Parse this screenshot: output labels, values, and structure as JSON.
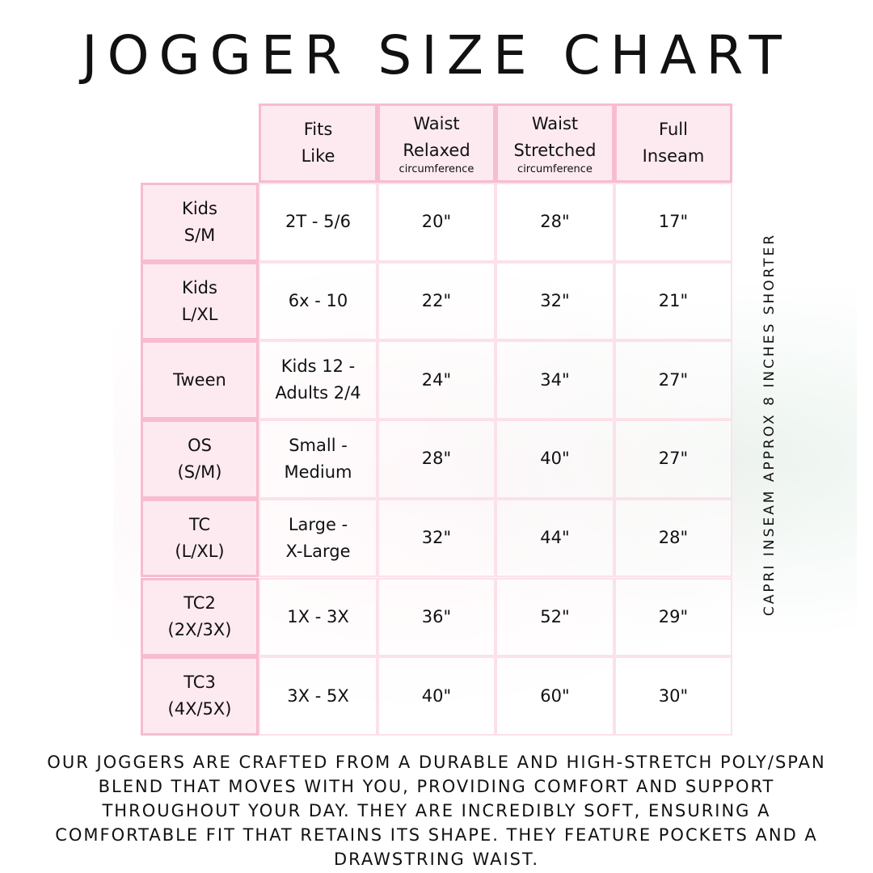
{
  "title": "JOGGER SIZE CHART",
  "side_note": "CAPRI INSEAM APPROX 8 INCHES SHORTER",
  "colors": {
    "header_fill": "#fdeaf0",
    "header_border": "#f7bcd0",
    "body_border": "#fbe1ea"
  },
  "columns": [
    {
      "line1": "Fits",
      "line2": "Like",
      "sub": ""
    },
    {
      "line1": "Waist",
      "line2": "Relaxed",
      "sub": "circumference"
    },
    {
      "line1": "Waist",
      "line2": "Stretched",
      "sub": "circumference"
    },
    {
      "line1": "Full",
      "line2": "Inseam",
      "sub": ""
    }
  ],
  "rows": [
    {
      "size1": "Kids",
      "size2": "S/M",
      "fits1": "2T - 5/6",
      "fits2": "",
      "relaxed": "20\"",
      "stretched": "28\"",
      "inseam": "17\""
    },
    {
      "size1": "Kids",
      "size2": "L/XL",
      "fits1": "6x - 10",
      "fits2": "",
      "relaxed": "22\"",
      "stretched": "32\"",
      "inseam": "21\""
    },
    {
      "size1": "Tween",
      "size2": "",
      "fits1": "Kids 12 -",
      "fits2": "Adults 2/4",
      "relaxed": "24\"",
      "stretched": "34\"",
      "inseam": "27\""
    },
    {
      "size1": "OS",
      "size2": "(S/M)",
      "fits1": "Small -",
      "fits2": "Medium",
      "relaxed": "28\"",
      "stretched": "40\"",
      "inseam": "27\""
    },
    {
      "size1": "TC",
      "size2": "(L/XL)",
      "fits1": "Large -",
      "fits2": "X-Large",
      "relaxed": "32\"",
      "stretched": "44\"",
      "inseam": "28\""
    },
    {
      "size1": "TC2",
      "size2": "(2X/3X)",
      "fits1": "1X - 3X",
      "fits2": "",
      "relaxed": "36\"",
      "stretched": "52\"",
      "inseam": "29\""
    },
    {
      "size1": "TC3",
      "size2": "(4X/5X)",
      "fits1": "3X - 5X",
      "fits2": "",
      "relaxed": "40\"",
      "stretched": "60\"",
      "inseam": "30\""
    }
  ],
  "description": "Our joggers are crafted from a durable and high-stretch poly/span blend that moves with you, providing comfort and support throughout your day. They are incredibly soft, ensuring a comfortable fit that retains its shape. They feature pockets and a drawstring waist."
}
